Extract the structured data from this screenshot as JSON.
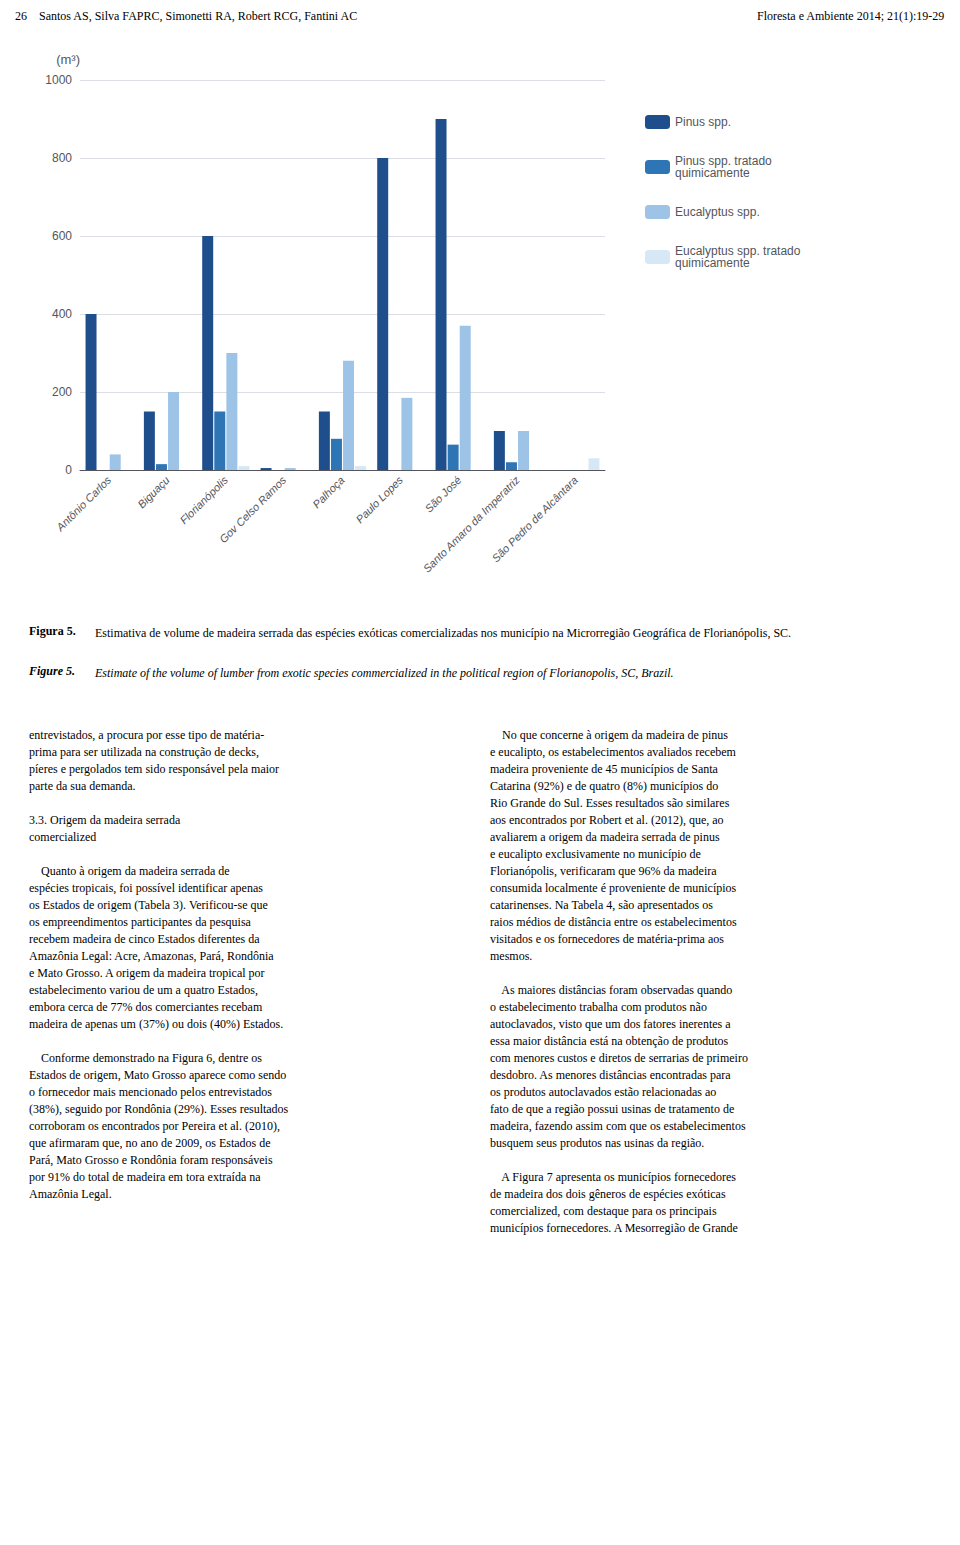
{
  "chart_data": {
    "type": "bar",
    "categories": [
      "Antônio Carlos",
      "Biguaçu",
      "Florianópolis",
      "Gov Celso Ramos",
      "Palhoça",
      "Paulo Lopes",
      "São José",
      "Santo Amaro da Imperatriz",
      "São Pedro de Alcântara"
    ],
    "series": [
      {
        "name": "Pinus spp.",
        "color": "#1F4E8C",
        "values": [
          400,
          150,
          600,
          5,
          150,
          800,
          900,
          100,
          0
        ]
      },
      {
        "name": "Pinus spp. tratado\nquimicamente",
        "color": "#2E75B6",
        "values": [
          0,
          15,
          150,
          0,
          80,
          0,
          65,
          20,
          0
        ]
      },
      {
        "name": "Eucalyptus spp.",
        "color": "#9DC3E6",
        "values": [
          40,
          200,
          300,
          5,
          280,
          185,
          370,
          100,
          0
        ]
      },
      {
        "name": "Eucalyptus spp. tratado\nquimicamente",
        "color": "#D6E8F5",
        "values": [
          0,
          0,
          10,
          0,
          10,
          0,
          0,
          0,
          30
        ]
      }
    ],
    "ylabel": "(m³)",
    "ylim": [
      0,
      1000
    ],
    "yticks": [
      0,
      200,
      400,
      600,
      800,
      1000
    ],
    "grid": true,
    "legend": "right",
    "annotations": [
      "26    Santos AS, Silva FAPRC, Simonetti RA, Robert RCG, Fantini AC",
      "Floresta e Ambiente 2014; 21(1):19-29",
      "Figura 5.",
      "Estimativa de volume de madeira serrada das espécies exóticas comercializadas nos município na Microrregião Geográfica de Florianópolis, SC.",
      "Figure 5.",
      "Estimate of the volume of lumber from exotic species commercialized in the political region of Florianopolis, SC, Brazil.",
      "entrevistados, a procura por esse tipo de matéria-\nprima para ser utilizada na construção de decks,\npíeres e pergolados tem sido responsável pela maior\nparte da sua demanda.\n\n3.3. Origem da madeira serrada\ncomercialized\n\n    Quanto à origem da madeira serrada de\nespécies tropicais, foi possível identificar apenas\nos Estados de origem (Tabela 3). Verificou-se que\nos empreendimentos participantes da pesquisa\nrecebem madeira de cinco Estados diferentes da\nAmazônia Legal: Acre, Amazonas, Pará, Rondônia\ne Mato Grosso. A origem da madeira tropical por\nestabelecimento variou de um a quatro Estados,\nembora cerca de 77% dos comerciantes recebam\nmadeira de apenas um (37%) ou dois (40%) Estados.\n\n    Conforme demonstrado na Figura 6, dentre os\nEstados de origem, Mato Grosso aparece como sendo\no fornecedor mais mencionado pelos entrevistados\n(38%), seguido por Rondônia (29%). Esses resultados\ncorroboram os encontrados por Pereira et al. (2010),\nque afirmaram que, no ano de 2009, os Estados de\nPará, Mato Grosso e Rondônia foram responsáveis\npor 91% do total de madeira em tora extraída na\nAmazônia Legal.",
      "    No que concerne à origem da madeira de pinus\ne eucalipto, os estabelecimentos avaliados recebem\nmadeira proveniente de 45 municípios de Santa\nCatarina (92%) e de quatro (8%) municípios do\nRio Grande do Sul. Esses resultados são similares\naos encontrados por Robert et al. (2012), que, ao\navaliarem a origem da madeira serrada de pinus\ne eucalipto exclusivamente no município de\nFlorianópolis, verificaram que 96% da madeira\nconsumida localmente é proveniente de municípios\ncatarinenses. Na Tabela 4, são apresentados os\nraios médios de distância entre os estabelecimentos\nvisitados e os fornecedores de matéria-prima aos\nmesmos.\n\n    As maiores distâncias foram observadas quando\no estabelecimento trabalha com produtos não\nautoclavados, visto que um dos fatores inerentes a\nessa maior distância está na obtenção de produtos\ncom menores custos e diretos de serrarias de primeiro\ndesdobro. As menores distâncias encontradas para\nos produtos autoclavados estão relacionadas ao\nfato de que a região possui usinas de tratamento de\nmadeira, fazendo assim com que os estabelecimentos\nbusquem seus produtos nas usinas da região.\n\n    A Figura 7 apresenta os municípios fornecedores\nde madeira dos dois gêneros de espécies exóticas\ncomercialized, com destaque para os principais\nmunicípios fornecedores. A Mesorregião de Grande"
    ]
  }
}
